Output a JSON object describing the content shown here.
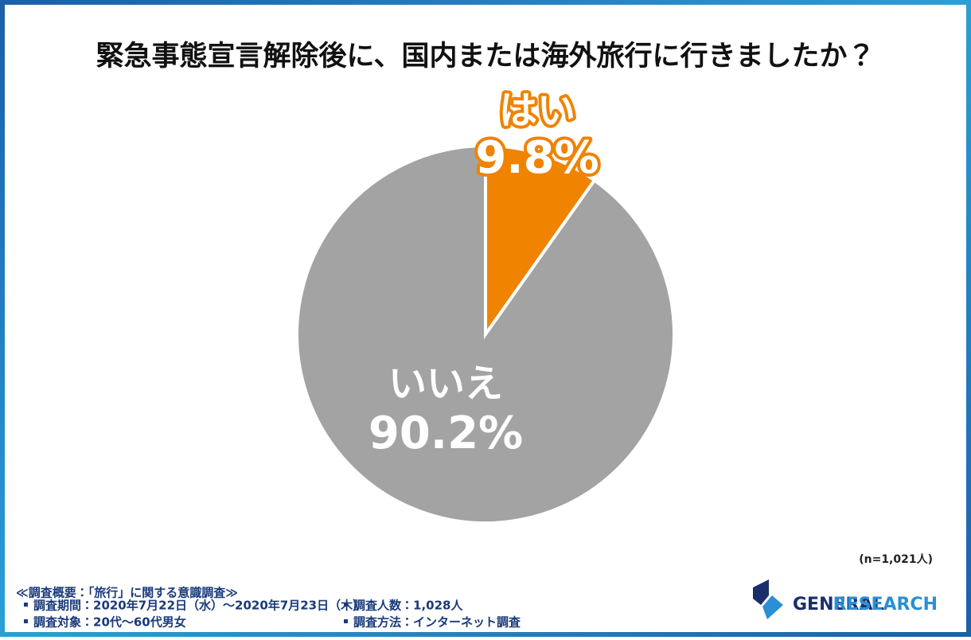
{
  "chart_data": {
    "type": "pie",
    "title": "緊急事態宣言解除後に、国内または海外旅行に行きましたか？",
    "categories": [
      "はい",
      "いいえ"
    ],
    "values": [
      9.8,
      90.2
    ],
    "value_labels": [
      "9.8%",
      "90.2%"
    ],
    "colors": [
      "#f08300",
      "#a3a3a3"
    ],
    "note": "(n=1,021人)"
  },
  "footer": {
    "heading": "≪調査概要：「旅行」に関する意識調査≫",
    "items": [
      "調査期間：2020年7月22日（水）～2020年7月23日（木）",
      "調査人数：1,028人",
      "調査対象：20代～60代男女",
      "調査方法：インターネット調査"
    ]
  },
  "logo": {
    "word1": "GENERAL",
    "word2": "RESEARCH"
  }
}
